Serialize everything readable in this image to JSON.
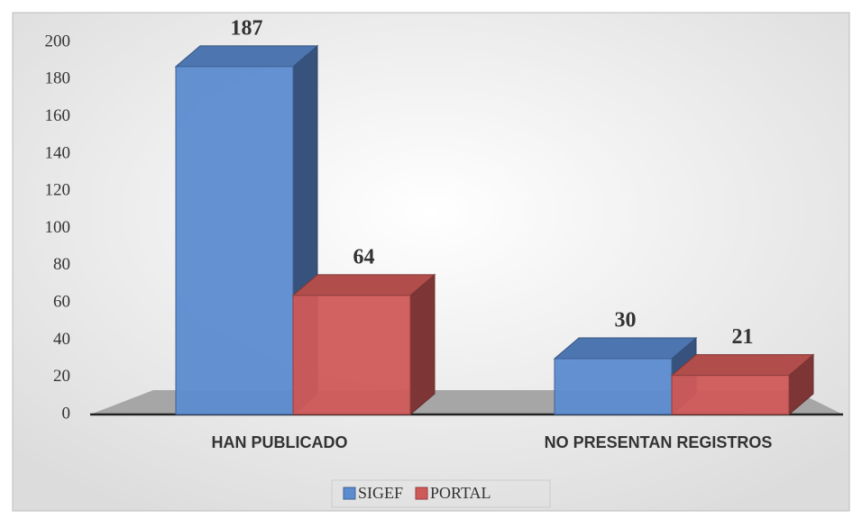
{
  "chart_data": {
    "type": "bar3d",
    "categories": [
      "HAN PUBLICADO",
      "NO PRESENTAN REGISTROS"
    ],
    "series": [
      {
        "name": "SIGEF",
        "color": "#5b8bd0",
        "values": [
          187,
          30
        ]
      },
      {
        "name": "PORTAL",
        "color": "#d05a58",
        "values": [
          64,
          21
        ]
      }
    ],
    "ylim": [
      0,
      200
    ],
    "yticks": [
      0,
      20,
      40,
      60,
      80,
      100,
      120,
      140,
      160,
      180,
      200
    ],
    "grid": false,
    "legend": "bottom"
  }
}
